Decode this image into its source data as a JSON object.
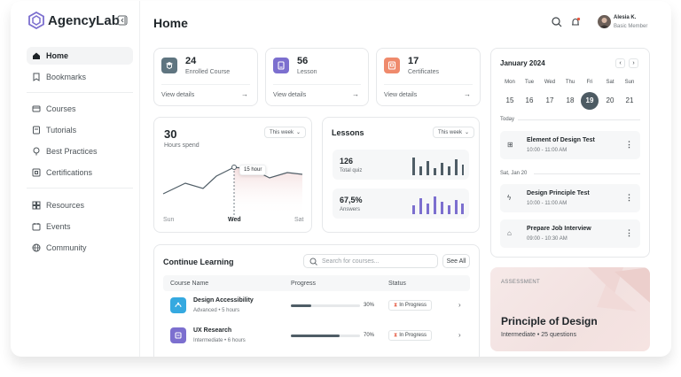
{
  "app": {
    "name": "AgencyLab"
  },
  "sidebar": {
    "items": [
      {
        "label": "Home",
        "icon": "home-icon"
      },
      {
        "label": "Bookmarks",
        "icon": "bookmark-icon"
      },
      {
        "label": "Courses",
        "icon": "courses-icon"
      },
      {
        "label": "Tutorials",
        "icon": "tutorials-icon"
      },
      {
        "label": "Best Practices",
        "icon": "best-practices-icon"
      },
      {
        "label": "Certifications",
        "icon": "certifications-icon"
      },
      {
        "label": "Resources",
        "icon": "resources-icon"
      },
      {
        "label": "Events",
        "icon": "events-icon"
      },
      {
        "label": "Community",
        "icon": "globe-icon"
      }
    ]
  },
  "header": {
    "title": "Home",
    "user": {
      "name": "Alesia K.",
      "role": "Basic Member"
    }
  },
  "stats": [
    {
      "value": "24",
      "label": "Enrolled Course",
      "link": "View details",
      "color": "#5f7580",
      "icon": "course-icon"
    },
    {
      "value": "56",
      "label": "Lesson",
      "link": "View details",
      "color": "#7c6fcf",
      "icon": "lesson-icon"
    },
    {
      "value": "17",
      "label": "Certificates",
      "link": "View details",
      "color": "#ef8a6c",
      "icon": "certificate-icon"
    }
  ],
  "hours": {
    "value": "30",
    "label": "Hours spend",
    "period": "This week",
    "tooltip": "15 hour",
    "x_labels": [
      "Sun",
      "Wed",
      "Sat"
    ]
  },
  "lessons": {
    "title": "Lessons",
    "period": "This week",
    "quiz": {
      "value": "126",
      "label": "Total quiz",
      "color": "#4f5d66"
    },
    "answers": {
      "value": "67,5%",
      "label": "Answers",
      "color": "#7c6fcf"
    }
  },
  "continue": {
    "title": "Continue Learning",
    "search_placeholder": "Search for courses...",
    "see_all": "See All",
    "columns": [
      "Course Name",
      "Progress",
      "Status"
    ],
    "rows": [
      {
        "name": "Design Accessibility",
        "meta": "Advanced • 5 hours",
        "progress": 30,
        "progress_label": "30%",
        "status": "In Progress",
        "color": "#35a9e0"
      },
      {
        "name": "UX Research",
        "meta": "Intermediate • 6 hours",
        "progress": 70,
        "progress_label": "70%",
        "status": "In Progress",
        "color": "#7c6fcf"
      }
    ]
  },
  "calendar": {
    "month": "January 2024",
    "days": [
      "Mon",
      "Tue",
      "Wed",
      "Thu",
      "Fri",
      "Sat",
      "Sun"
    ],
    "dates": [
      "15",
      "16",
      "17",
      "18",
      "19",
      "20",
      "21"
    ],
    "selected": "19",
    "sections": {
      "today": "Today",
      "sat": "Sat, Jan 20"
    },
    "events": [
      {
        "title": "Element of Design Test",
        "time": "10:00 - 11:00 AM"
      },
      {
        "title": "Design Principle Test",
        "time": "10:00 - 11:00 AM"
      },
      {
        "title": "Prepare Job Interview",
        "time": "09:00 - 10:30 AM"
      }
    ]
  },
  "assessment": {
    "tag": "ASSESSMENT",
    "title": "Principle of Design",
    "meta": "Intermediate • 25 questions"
  }
}
